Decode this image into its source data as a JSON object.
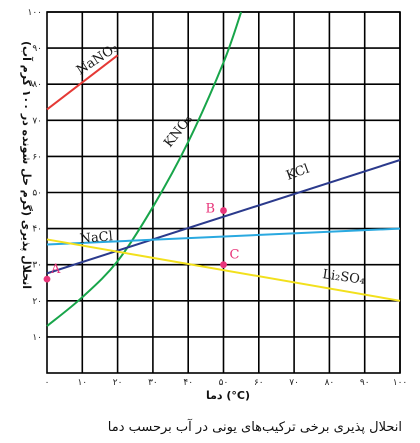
{
  "caption": "انحلال پذیری برخی ترکیب‌های یونی در آب برحسب دما",
  "chart_data": {
    "type": "line",
    "xlabel": "دما (°C)",
    "ylabel": "انحلال پذیری (گرم حل شونده در ۱۰۰ گرم آب)",
    "xlim": [
      0,
      100
    ],
    "ylim": [
      0,
      100
    ],
    "x_ticks": [
      {
        "v": 0,
        "label": "۰"
      },
      {
        "v": 10,
        "label": "۱۰"
      },
      {
        "v": 20,
        "label": "۲۰"
      },
      {
        "v": 30,
        "label": "۳۰"
      },
      {
        "v": 40,
        "label": "۴۰"
      },
      {
        "v": 50,
        "label": "۵۰"
      },
      {
        "v": 60,
        "label": "۶۰"
      },
      {
        "v": 70,
        "label": "۷۰"
      },
      {
        "v": 80,
        "label": "۸۰"
      },
      {
        "v": 90,
        "label": "۹۰"
      },
      {
        "v": 100,
        "label": "۱۰۰"
      }
    ],
    "y_ticks": [
      {
        "v": 10,
        "label": "۱۰"
      },
      {
        "v": 20,
        "label": "۲۰"
      },
      {
        "v": 30,
        "label": "۳۰"
      },
      {
        "v": 40,
        "label": "۴۰"
      },
      {
        "v": 50,
        "label": "۵۰"
      },
      {
        "v": 60,
        "label": "۶۰"
      },
      {
        "v": 70,
        "label": "۷۰"
      },
      {
        "v": 80,
        "label": "۸۰"
      },
      {
        "v": 90,
        "label": "۹۰"
      },
      {
        "v": 100,
        "label": "۱۰۰"
      }
    ],
    "grid": true,
    "series": [
      {
        "name": "NaNO₃",
        "color": "#e53935",
        "x": [
          0,
          20
        ],
        "y": [
          73,
          88
        ]
      },
      {
        "name": "KNO₃",
        "color": "#18a54a",
        "x": [
          0,
          10,
          20,
          30,
          40,
          50,
          55
        ],
        "y": [
          13,
          21,
          31,
          46,
          64,
          86,
          100
        ]
      },
      {
        "name": "KCl",
        "color": "#2b3a8c",
        "x": [
          0,
          100
        ],
        "y": [
          27.6,
          59
        ]
      },
      {
        "name": "NaCl",
        "color": "#2aa9e0",
        "x": [
          0,
          100
        ],
        "y": [
          35.6,
          40
        ]
      },
      {
        "name": "Li₂SO₄",
        "color": "#f2e01c",
        "x": [
          0,
          100
        ],
        "y": [
          37,
          20
        ]
      }
    ],
    "points": [
      {
        "label": "A",
        "x": 0,
        "y": 26
      },
      {
        "label": "B",
        "x": 50,
        "y": 45
      },
      {
        "label": "C",
        "x": 50,
        "y": 30
      }
    ],
    "point_color": "#e8357a"
  }
}
